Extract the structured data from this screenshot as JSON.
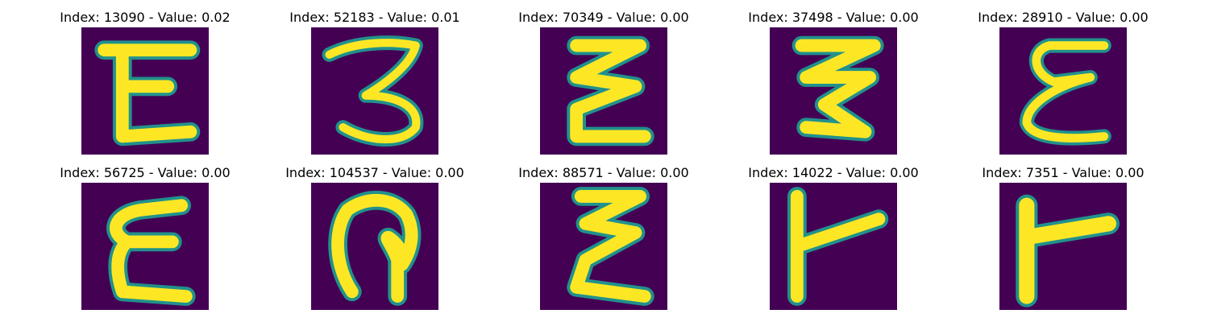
{
  "panels": [
    {
      "title": "Index: 13090 - Value: 0.02"
    },
    {
      "title": "Index: 52183 - Value: 0.01"
    },
    {
      "title": "Index: 70349 - Value: 0.00"
    },
    {
      "title": "Index: 37498 - Value: 0.00"
    },
    {
      "title": "Index: 28910 - Value: 0.00"
    },
    {
      "title": "Index: 56725 - Value: 0.00"
    },
    {
      "title": "Index: 104537 - Value: 0.00"
    },
    {
      "title": "Index: 88571 - Value: 0.00"
    },
    {
      "title": "Index: 14022 - Value: 0.00"
    },
    {
      "title": "Index: 7351 - Value: 0.00"
    }
  ],
  "colors": {
    "background": "#440154",
    "stroke_core": "#fde725",
    "stroke_edge": "#21918c"
  }
}
